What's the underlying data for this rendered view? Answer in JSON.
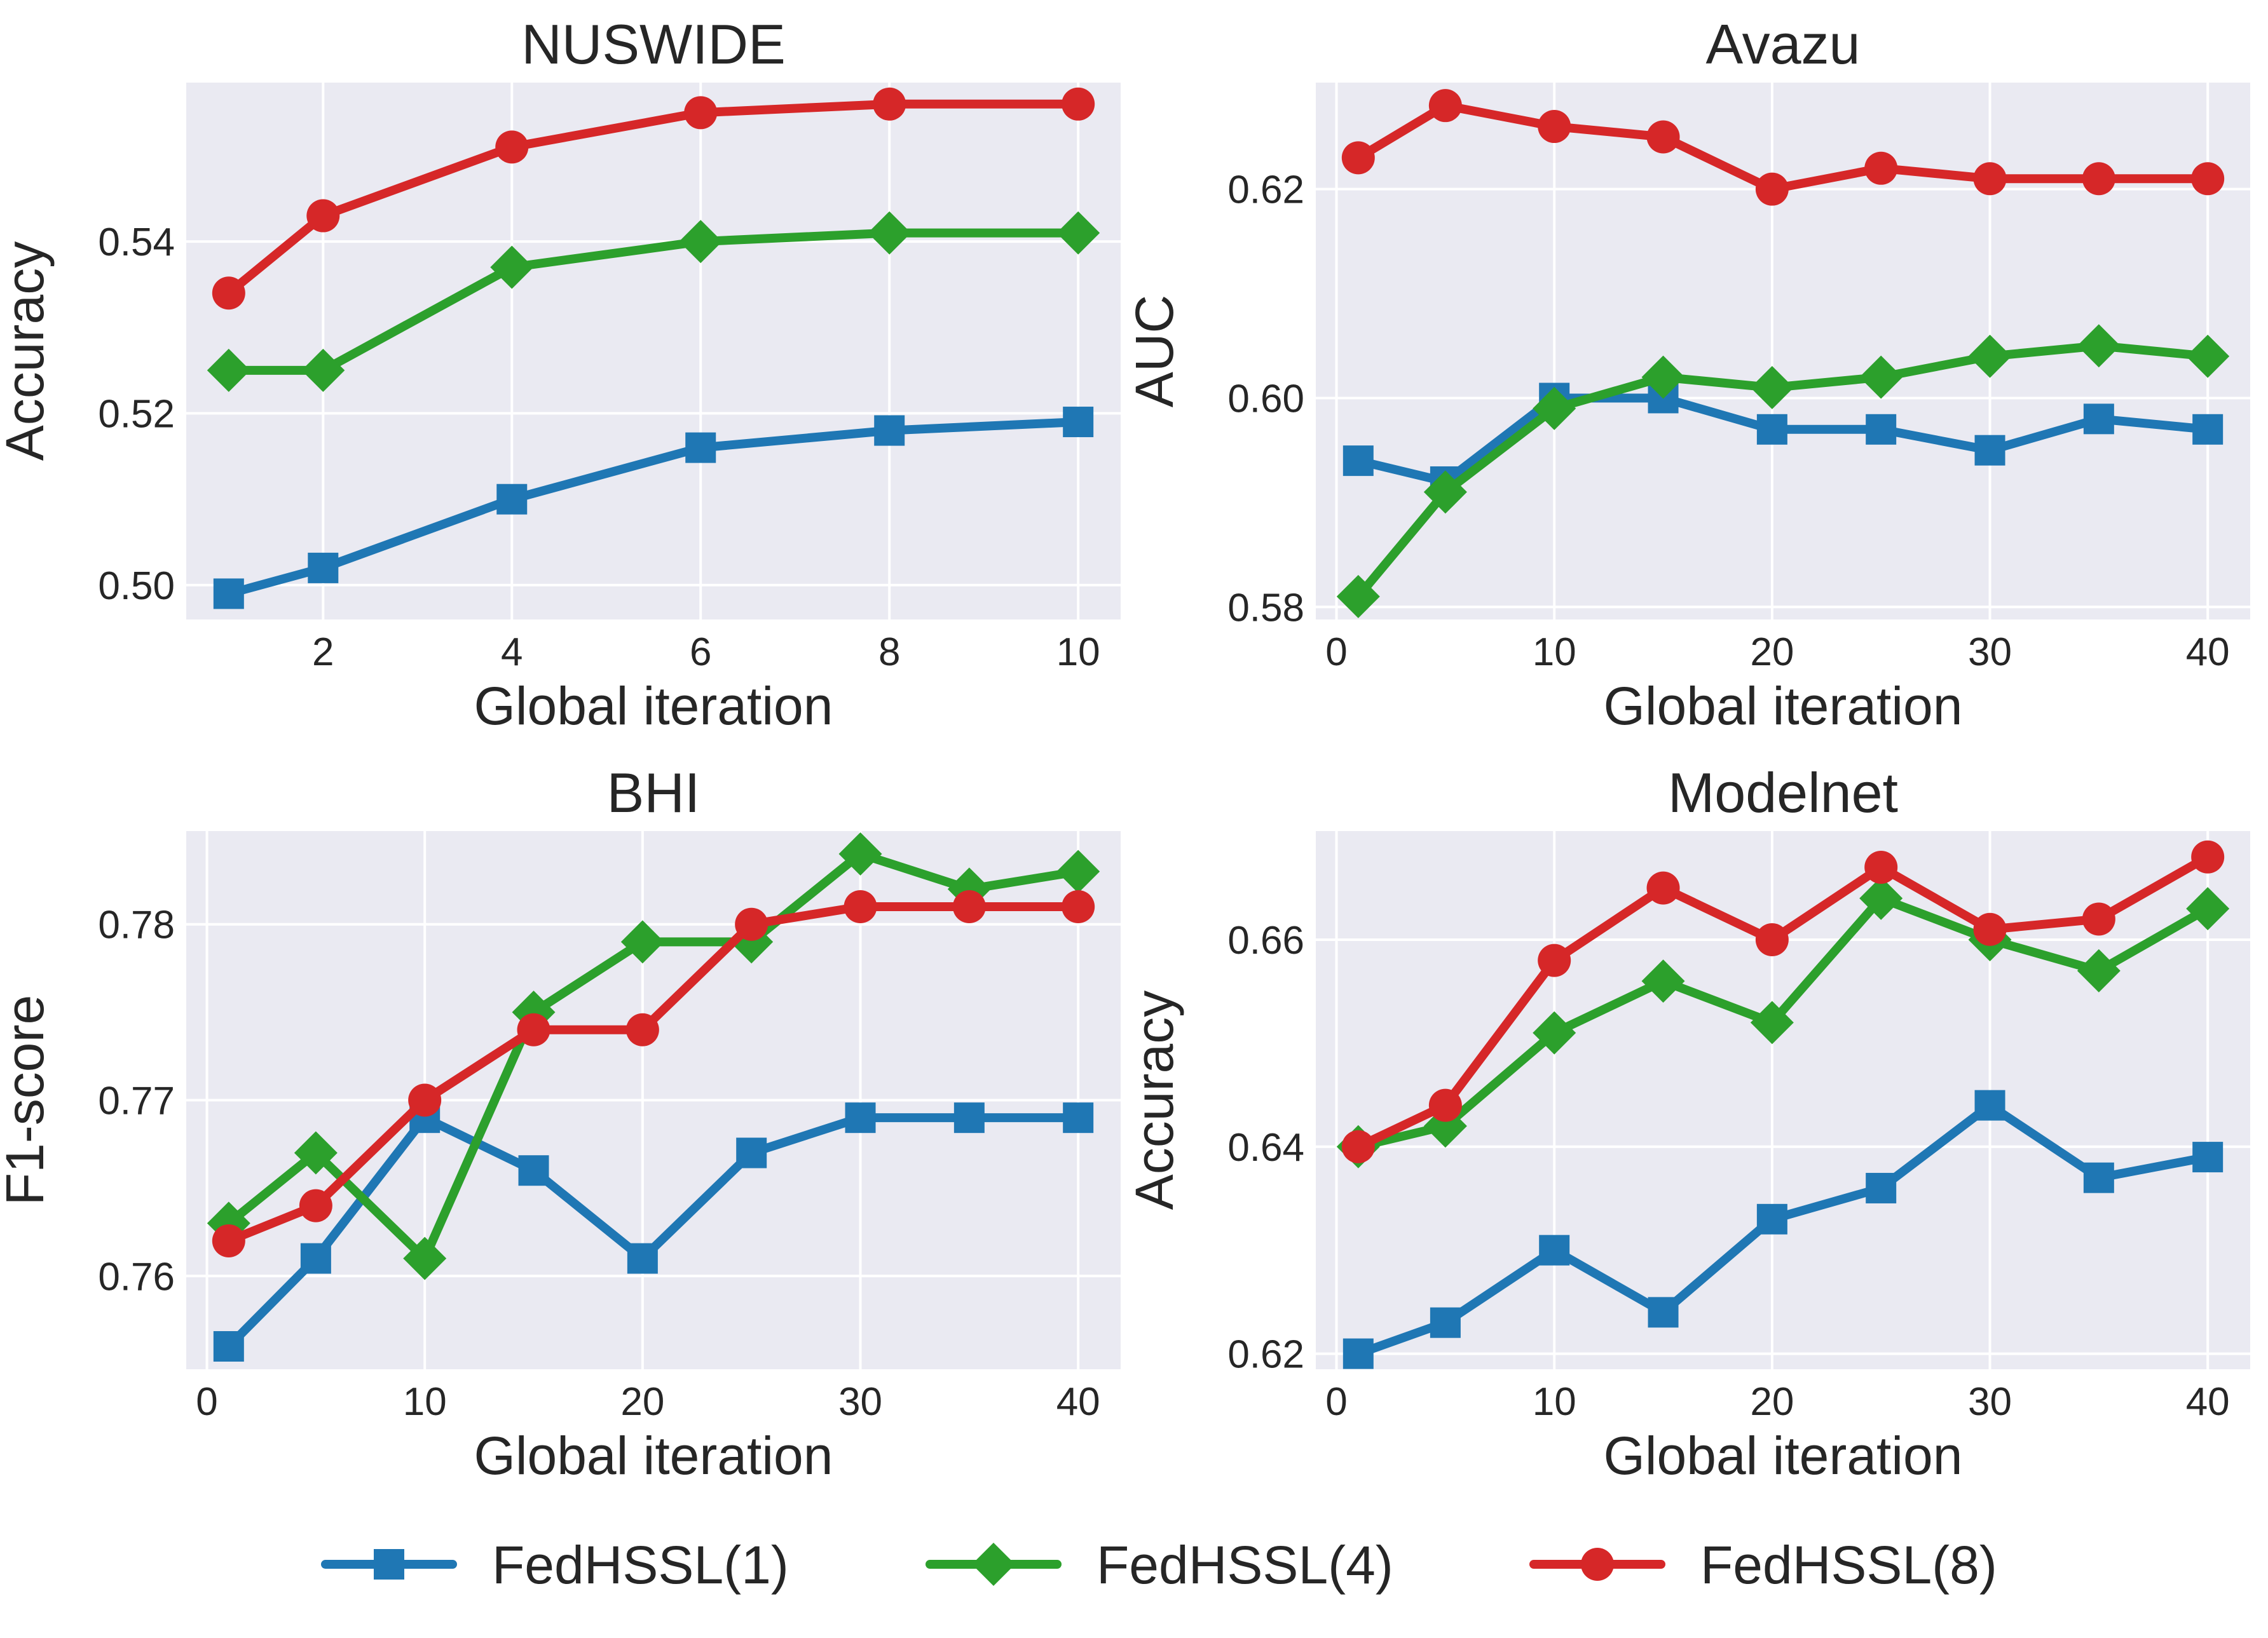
{
  "chart_data": [
    {
      "type": "line",
      "title": "NUSWIDE",
      "xlabel": "Global iteration",
      "ylabel": "Accuracy",
      "xlim": [
        0.55,
        10.45
      ],
      "ylim": [
        0.496,
        0.5585
      ],
      "xticks": [
        2,
        4,
        6,
        8,
        10
      ],
      "xtick_labels": [
        "2",
        "4",
        "6",
        "8",
        "10"
      ],
      "yticks": [
        0.5,
        0.52,
        0.54
      ],
      "ytick_labels": [
        "0.50",
        "0.52",
        "0.54"
      ],
      "x": [
        1,
        2,
        4,
        6,
        8,
        10
      ],
      "grid": true,
      "series": [
        {
          "name": "FedHSSL(1)",
          "values": [
            0.499,
            0.502,
            0.51,
            0.516,
            0.518,
            0.519
          ]
        },
        {
          "name": "FedHSSL(4)",
          "values": [
            0.525,
            0.525,
            0.537,
            0.54,
            0.541,
            0.541
          ]
        },
        {
          "name": "FedHSSL(8)",
          "values": [
            0.534,
            0.543,
            0.551,
            0.555,
            0.556,
            0.556
          ]
        }
      ]
    },
    {
      "type": "line",
      "title": "Avazu",
      "xlabel": "Global iteration",
      "ylabel": "AUC",
      "xlim": [
        -0.95,
        41.95
      ],
      "ylim": [
        0.5788,
        0.6302
      ],
      "xticks": [
        0,
        10,
        20,
        30,
        40
      ],
      "xtick_labels": [
        "0",
        "10",
        "20",
        "30",
        "40"
      ],
      "yticks": [
        0.58,
        0.6,
        0.62
      ],
      "ytick_labels": [
        "0.58",
        "0.60",
        "0.62"
      ],
      "x": [
        1,
        5,
        10,
        15,
        20,
        25,
        30,
        35,
        40
      ],
      "grid": true,
      "series": [
        {
          "name": "FedHSSL(1)",
          "values": [
            0.594,
            0.592,
            0.6,
            0.6,
            0.597,
            0.597,
            0.595,
            0.598,
            0.597
          ]
        },
        {
          "name": "FedHSSL(4)",
          "values": [
            0.581,
            0.591,
            0.599,
            0.602,
            0.601,
            0.602,
            0.604,
            0.605,
            0.604
          ]
        },
        {
          "name": "FedHSSL(8)",
          "values": [
            0.623,
            0.628,
            0.626,
            0.625,
            0.62,
            0.622,
            0.621,
            0.621,
            0.621
          ]
        }
      ]
    },
    {
      "type": "line",
      "title": "BHI",
      "xlabel": "Global iteration",
      "ylabel": "F1-score",
      "xlim": [
        -0.95,
        41.95
      ],
      "ylim": [
        0.7547,
        0.7853
      ],
      "xticks": [
        0,
        10,
        20,
        30,
        40
      ],
      "xtick_labels": [
        "0",
        "10",
        "20",
        "30",
        "40"
      ],
      "yticks": [
        0.76,
        0.77,
        0.78
      ],
      "ytick_labels": [
        "0.76",
        "0.77",
        "0.78"
      ],
      "x": [
        1,
        5,
        10,
        15,
        20,
        25,
        30,
        35,
        40
      ],
      "grid": true,
      "series": [
        {
          "name": "FedHSSL(1)",
          "values": [
            0.756,
            0.761,
            0.769,
            0.766,
            0.761,
            0.767,
            0.769,
            0.769,
            0.769
          ]
        },
        {
          "name": "FedHSSL(4)",
          "values": [
            0.763,
            0.767,
            0.761,
            0.775,
            0.779,
            0.779,
            0.784,
            0.782,
            0.783
          ]
        },
        {
          "name": "FedHSSL(8)",
          "values": [
            0.762,
            0.764,
            0.77,
            0.774,
            0.774,
            0.78,
            0.781,
            0.781,
            0.781
          ]
        }
      ]
    },
    {
      "type": "line",
      "title": "Modelnet",
      "xlabel": "Global iteration",
      "ylabel": "Accuracy",
      "xlim": [
        -0.95,
        41.95
      ],
      "ylim": [
        0.6185,
        0.6705
      ],
      "xticks": [
        0,
        10,
        20,
        30,
        40
      ],
      "xtick_labels": [
        "0",
        "10",
        "20",
        "30",
        "40"
      ],
      "yticks": [
        0.62,
        0.64,
        0.66
      ],
      "ytick_labels": [
        "0.62",
        "0.64",
        "0.66"
      ],
      "x": [
        1,
        5,
        10,
        15,
        20,
        25,
        30,
        35,
        40
      ],
      "grid": true,
      "series": [
        {
          "name": "FedHSSL(1)",
          "values": [
            0.62,
            0.623,
            0.63,
            0.624,
            0.633,
            0.636,
            0.644,
            0.637,
            0.639
          ]
        },
        {
          "name": "FedHSSL(4)",
          "values": [
            0.64,
            0.642,
            0.651,
            0.656,
            0.652,
            0.664,
            0.66,
            0.657,
            0.663
          ]
        },
        {
          "name": "FedHSSL(8)",
          "values": [
            0.64,
            0.644,
            0.658,
            0.665,
            0.66,
            0.667,
            0.661,
            0.662,
            0.668
          ]
        }
      ]
    }
  ],
  "legend": {
    "placement": "bottom-center",
    "entries": [
      {
        "label": "FedHSSL(1)",
        "color": "#1f77b4",
        "marker": "square"
      },
      {
        "label": "FedHSSL(4)",
        "color": "#2ca02c",
        "marker": "diamond"
      },
      {
        "label": "FedHSSL(8)",
        "color": "#d62728",
        "marker": "circle"
      }
    ]
  }
}
